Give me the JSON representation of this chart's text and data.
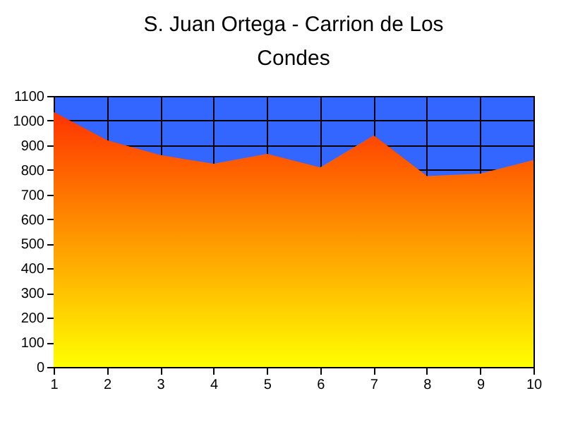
{
  "chart_data": {
    "type": "area",
    "title": "S. Juan  Ortega - Carrion de Los Condes",
    "x": [
      1,
      2,
      3,
      4,
      5,
      6,
      7,
      8,
      9,
      10
    ],
    "series": [
      {
        "color": "#ff3300",
        "values": [
          1035,
          920,
          860,
          825,
          865,
          810,
          940,
          775,
          785,
          840
        ]
      }
    ],
    "xlim": [
      1,
      10
    ],
    "xticks": [
      1,
      2,
      3,
      4,
      5,
      6,
      7,
      8,
      9,
      10
    ],
    "ylim": [
      0,
      1100
    ],
    "yticks": [
      0,
      100,
      200,
      300,
      400,
      500,
      600,
      700,
      800,
      900,
      1000,
      1100
    ],
    "grid": true
  }
}
